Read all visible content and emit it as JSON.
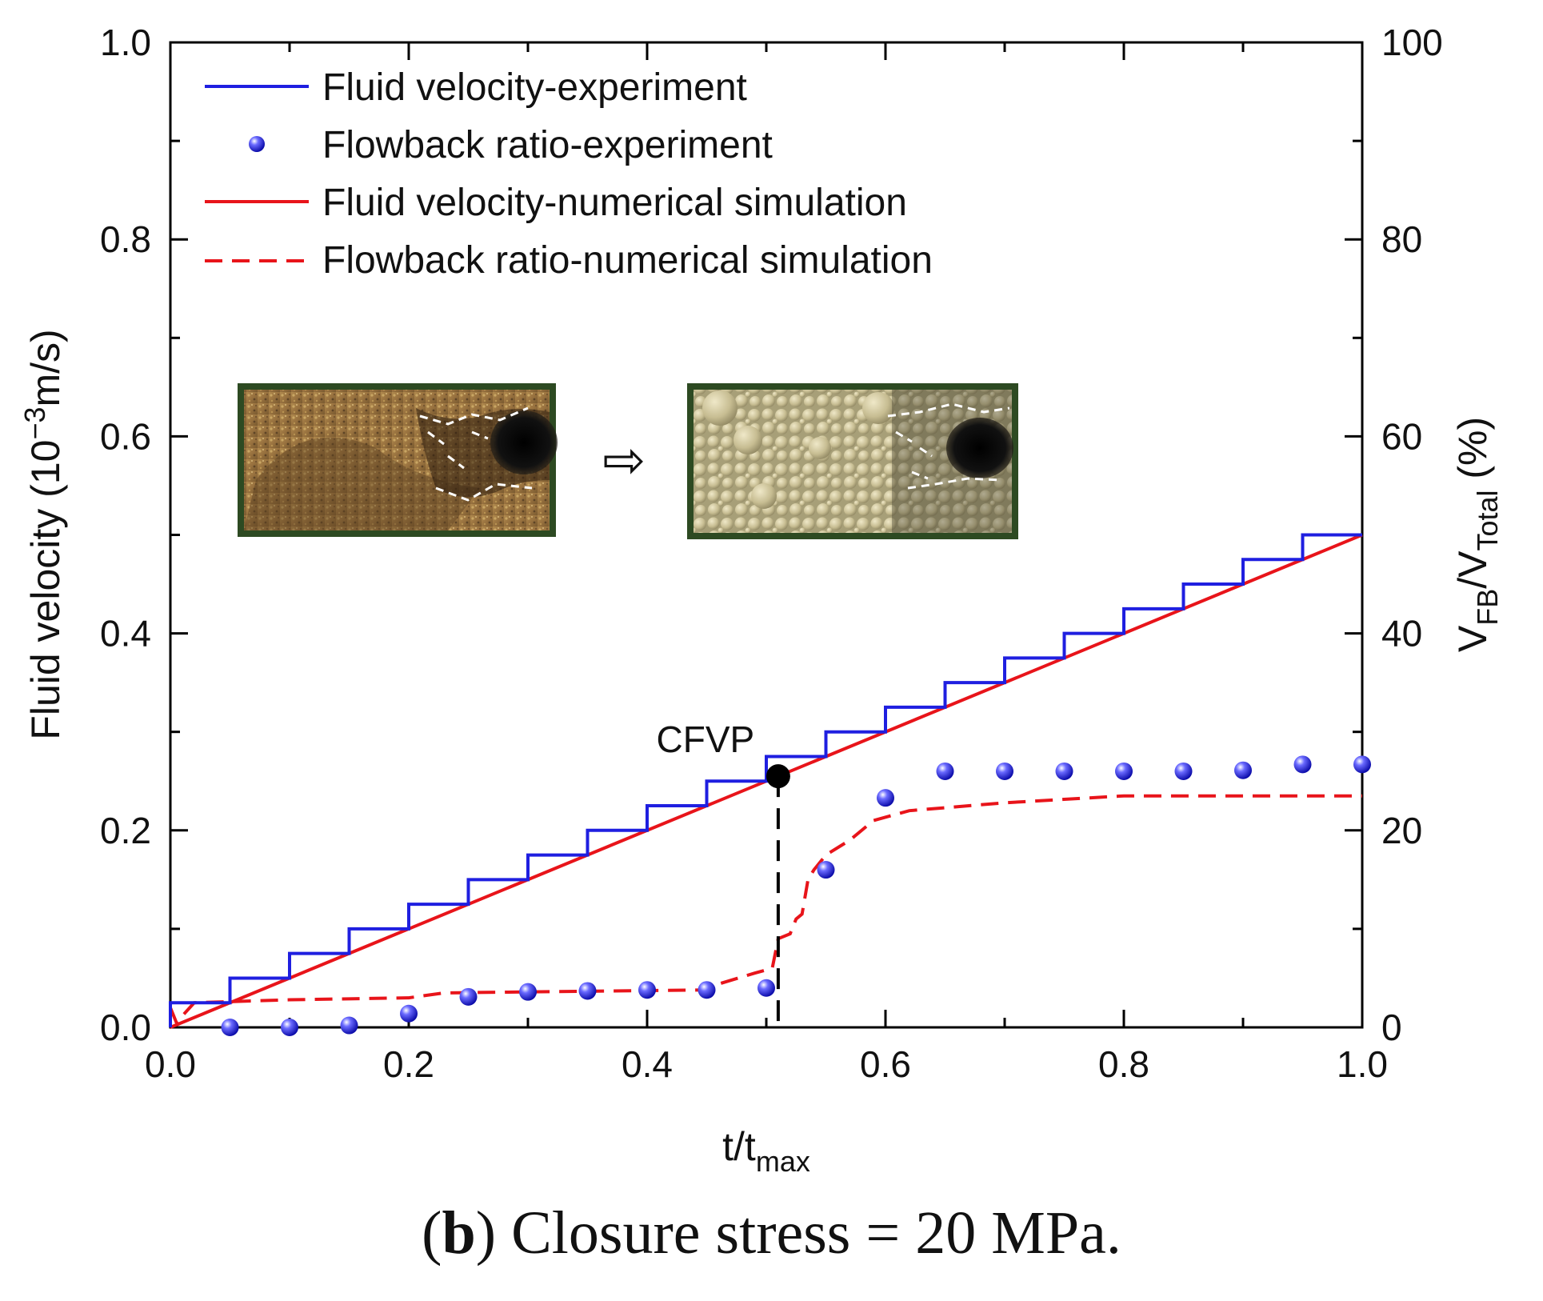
{
  "chart_data": {
    "type": "line",
    "title": "",
    "xlabel": {
      "base": "t/t",
      "sub": "max"
    },
    "ylabel": {
      "base": "Fluid velocity (10",
      "sup": "−3",
      "tail": "m/s)"
    },
    "y2label": {
      "v1": "V",
      "s1": "FB",
      "slash": "/V",
      "s2": "Total",
      "tail": " (%)"
    },
    "xlim": [
      0,
      1
    ],
    "ylim": [
      0,
      1
    ],
    "y2lim": [
      0,
      100
    ],
    "xticks": [
      "0.0",
      "0.2",
      "0.4",
      "0.6",
      "0.8",
      "1.0"
    ],
    "yticks": [
      "0.0",
      "0.2",
      "0.4",
      "0.6",
      "0.8",
      "1.0"
    ],
    "y2ticks": [
      "0",
      "20",
      "40",
      "60",
      "80",
      "100"
    ],
    "legend": [
      {
        "label": "Fluid velocity-experiment",
        "color": "#1f1fe0",
        "style": "solid-line"
      },
      {
        "label": "Flowback ratio-experiment",
        "color": "#1f1fe0",
        "style": "sphere-marker"
      },
      {
        "label": "Fluid velocity-numerical simulation",
        "color": "#e8141a",
        "style": "solid-line"
      },
      {
        "label": "Flowback ratio-numerical simulation",
        "color": "#e8141a",
        "style": "dashed-line"
      }
    ],
    "series": [
      {
        "name": "Fluid velocity-experiment",
        "axis": "left",
        "kind": "step",
        "x": [
          0,
          0.05,
          0.1,
          0.15,
          0.2,
          0.25,
          0.3,
          0.35,
          0.4,
          0.45,
          0.5,
          0.55,
          0.6,
          0.65,
          0.7,
          0.75,
          0.8,
          0.85,
          0.9,
          0.95,
          1.0
        ],
        "y": [
          0.025,
          0.05,
          0.075,
          0.1,
          0.125,
          0.15,
          0.175,
          0.2,
          0.225,
          0.25,
          0.275,
          0.3,
          0.325,
          0.35,
          0.375,
          0.4,
          0.425,
          0.45,
          0.475,
          0.5,
          0.5
        ]
      },
      {
        "name": "Flowback ratio-experiment",
        "axis": "right",
        "kind": "scatter",
        "x": [
          0.05,
          0.1,
          0.15,
          0.2,
          0.25,
          0.3,
          0.35,
          0.4,
          0.45,
          0.5,
          0.55,
          0.6,
          0.65,
          0.7,
          0.75,
          0.8,
          0.85,
          0.9,
          0.95,
          1.0
        ],
        "y": [
          0,
          0,
          0.2,
          1.4,
          3.1,
          3.6,
          3.7,
          3.8,
          3.8,
          4.0,
          16.0,
          23.3,
          26.0,
          26.0,
          26.0,
          26.0,
          26.0,
          26.1,
          26.7,
          26.7
        ]
      },
      {
        "name": "Fluid velocity-numerical simulation",
        "axis": "left",
        "kind": "line",
        "x": [
          0,
          1.0
        ],
        "y": [
          0,
          0.5
        ]
      },
      {
        "name": "Flowback ratio-numerical simulation",
        "axis": "right",
        "kind": "dashed",
        "x": [
          0,
          0.005,
          0.02,
          0.1,
          0.2,
          0.23,
          0.3,
          0.45,
          0.46,
          0.49,
          0.505,
          0.51,
          0.52,
          0.525,
          0.53,
          0.535,
          0.54,
          0.55,
          0.57,
          0.59,
          0.62,
          0.7,
          0.8,
          1.0
        ],
        "y": [
          2.0,
          0.5,
          2.5,
          2.8,
          3.0,
          3.5,
          3.6,
          3.8,
          4.4,
          5.5,
          6.0,
          9.0,
          9.5,
          11.0,
          11.5,
          15.0,
          16.0,
          17.5,
          19.0,
          21.0,
          22.0,
          22.8,
          23.5,
          23.5
        ]
      }
    ],
    "annotations": [
      {
        "text": "CFVP",
        "x": 0.51,
        "y": 0.255,
        "marker": "filled-circle",
        "dropline": "dashed-vertical-to-x-axis"
      }
    ],
    "insets": [
      {
        "name": "experiment-photo",
        "description": "photo of proppant pack with flowback channel"
      },
      {
        "name": "simulation-render",
        "description": "particle simulation of proppant pack with channel"
      }
    ],
    "inset_arrow": "⇨"
  },
  "caption": {
    "label": "b",
    "text": "Closure stress = 20 MPa."
  }
}
